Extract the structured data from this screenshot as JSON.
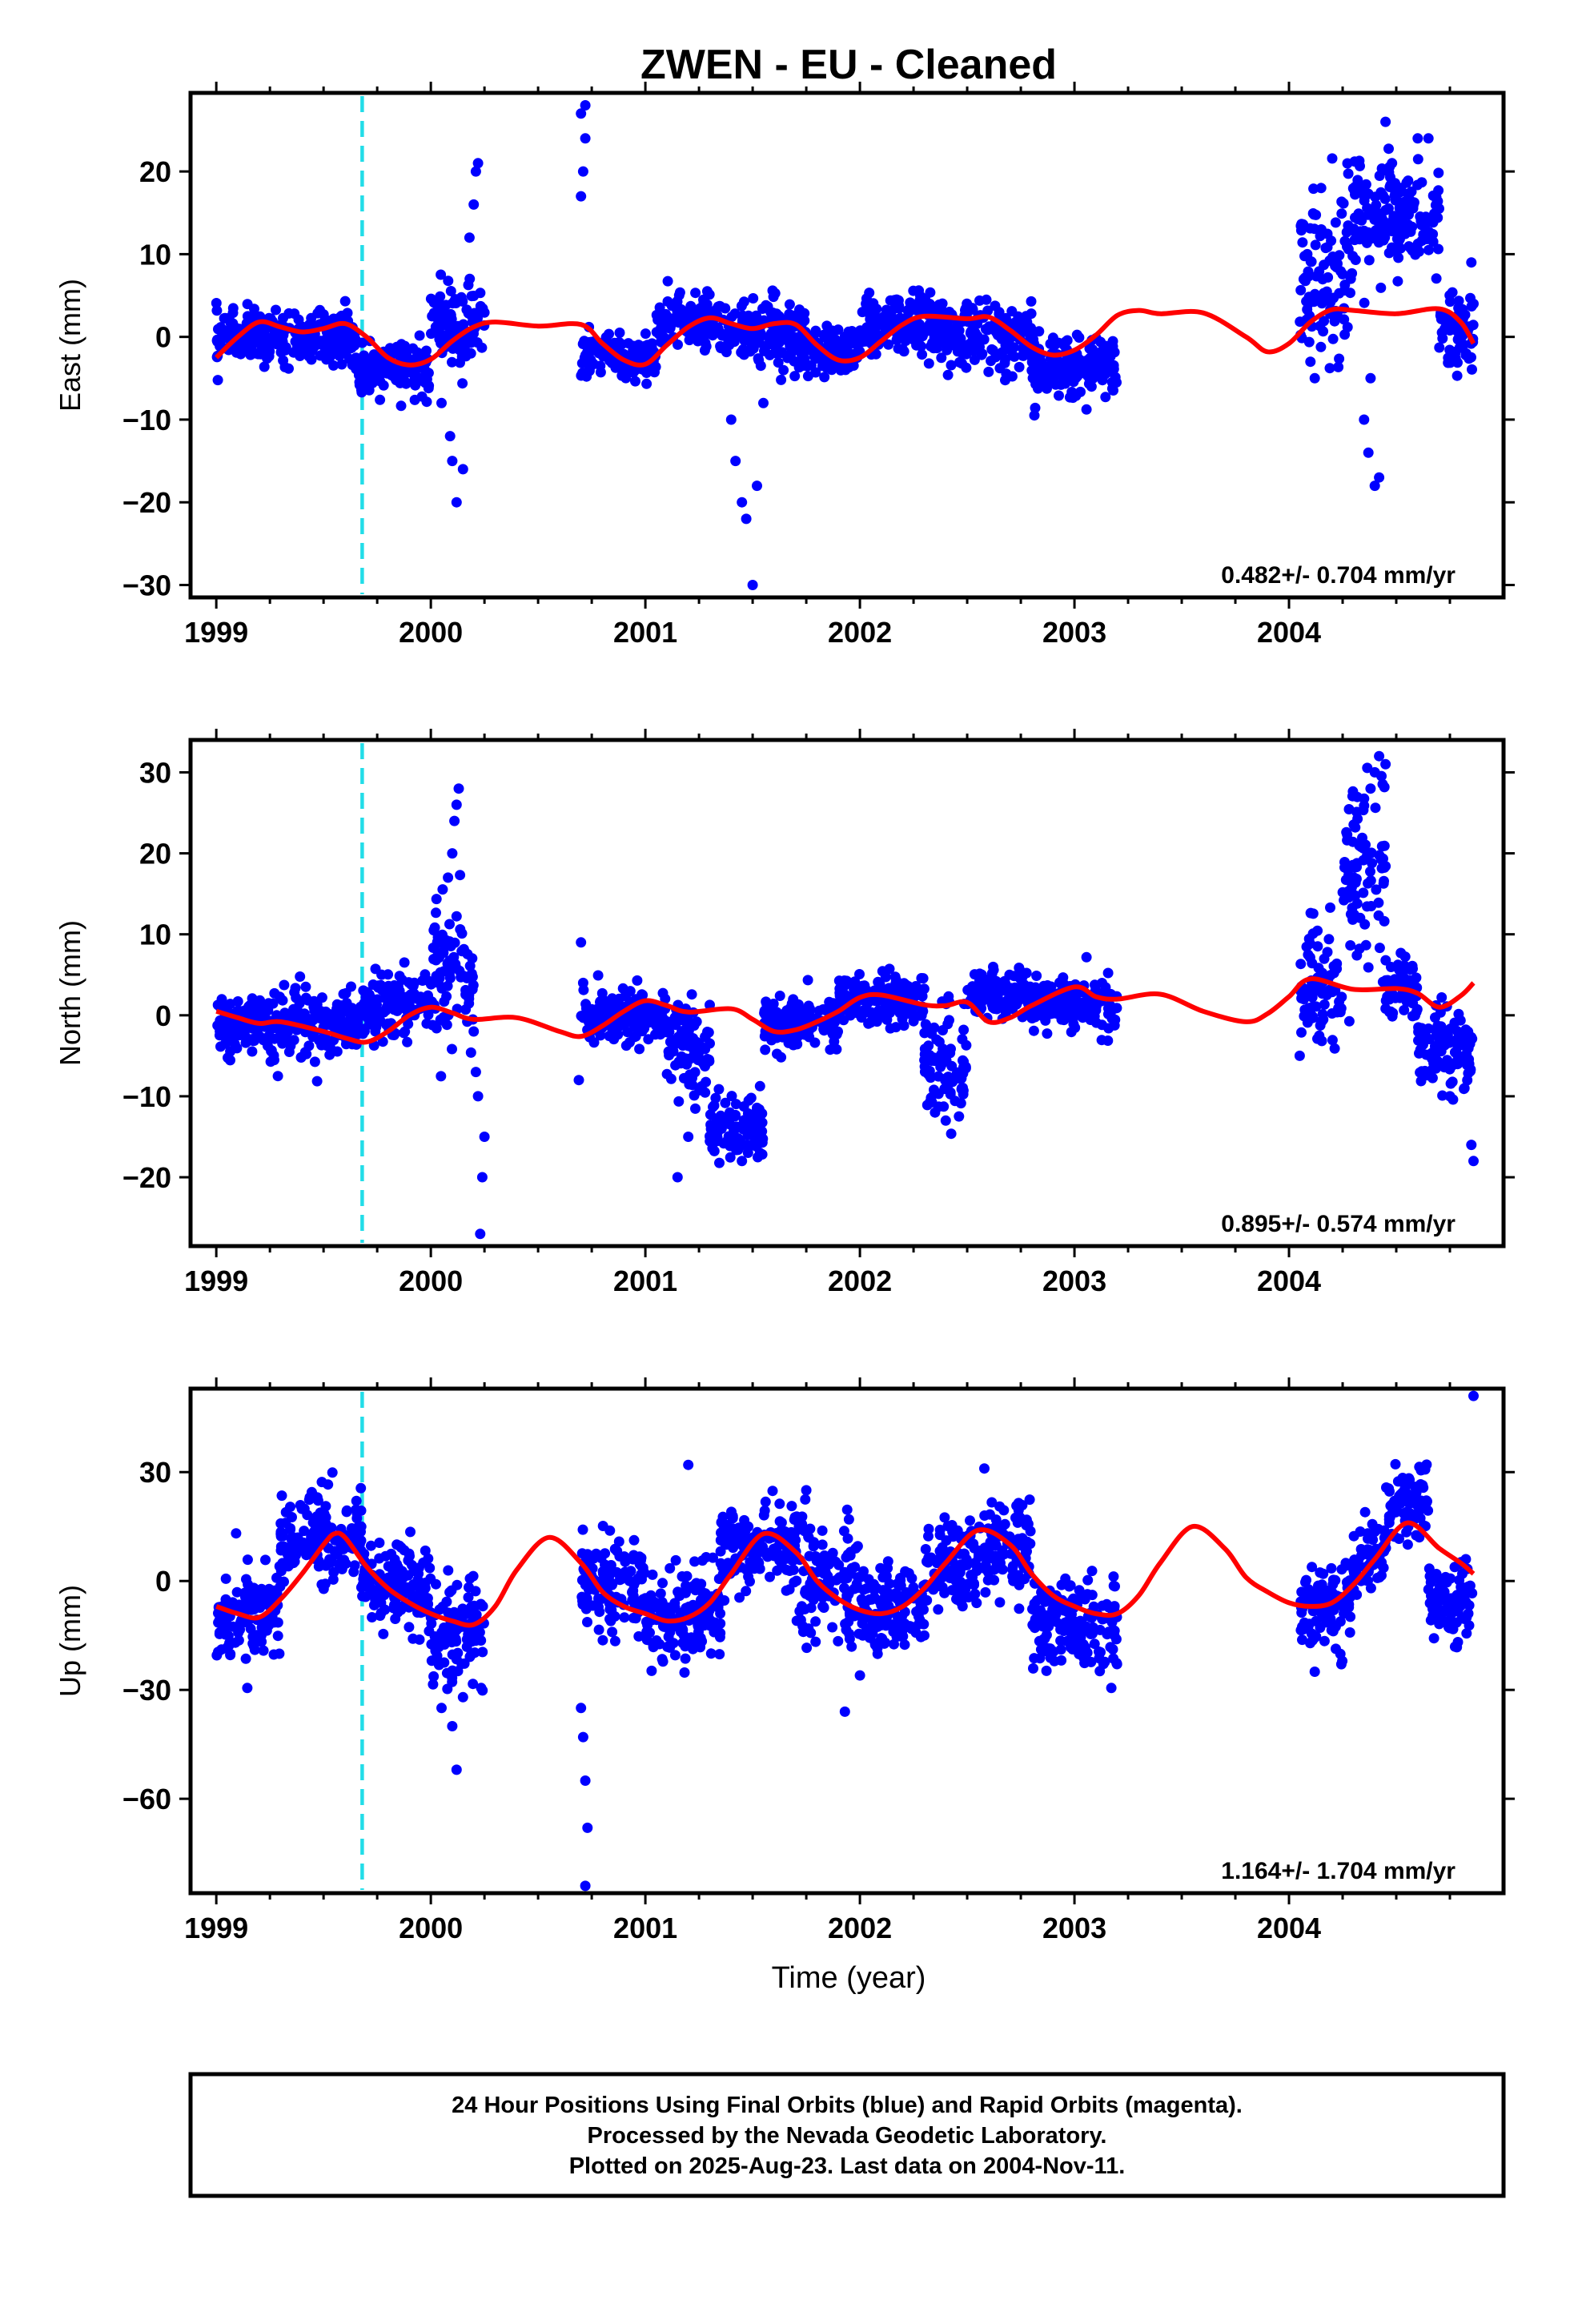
{
  "title": "ZWEN  - EU - Cleaned",
  "chart_data": [
    {
      "type": "scatter",
      "ylabel": "East (mm)",
      "xlabel": "",
      "xlim": [
        1998.88,
        2005.0
      ],
      "ylim": [
        -31.5,
        29.5
      ],
      "x_ticks": [
        1999,
        2000,
        2001,
        2002,
        2003,
        2004
      ],
      "y_ticks": [
        -30,
        -20,
        -10,
        0,
        10,
        20
      ],
      "rate_label": "0.482+/- 0.704 mm/yr",
      "antenna_change_x": 1999.68,
      "points_color": "#0000ff",
      "model_color": "#ff0000",
      "model": {
        "x": [
          1999.0,
          1999.1,
          1999.2,
          1999.3,
          1999.4,
          1999.5,
          1999.6,
          1999.7,
          1999.8,
          1999.9,
          2000.0,
          2000.1,
          2000.2,
          2000.3,
          2000.5,
          2000.7,
          2000.8,
          2000.9,
          2001.0,
          2001.1,
          2001.2,
          2001.3,
          2001.4,
          2001.5,
          2001.6,
          2001.7,
          2001.8,
          2001.9,
          2002.0,
          2002.1,
          2002.2,
          2002.3,
          2002.5,
          2002.6,
          2002.7,
          2002.8,
          2002.9,
          2003.0,
          2003.1,
          2003.2,
          2003.3,
          2003.4,
          2003.6,
          2003.8,
          2003.9,
          2004.0,
          2004.1,
          2004.2,
          2004.3,
          2004.5,
          2004.7,
          2004.8,
          2004.86
        ],
        "y": [
          -2.5,
          0.0,
          1.8,
          1.2,
          0.6,
          1.0,
          1.6,
          0.0,
          -2.5,
          -3.4,
          -2.7,
          -0.5,
          1.2,
          1.8,
          1.3,
          1.5,
          -0.8,
          -2.8,
          -3.3,
          -1.0,
          1.2,
          2.3,
          1.6,
          1.0,
          1.6,
          1.5,
          -1.0,
          -2.8,
          -2.5,
          -0.5,
          1.5,
          2.5,
          2.2,
          2.4,
          0.8,
          -1.2,
          -2.2,
          -1.6,
          0.2,
          2.6,
          3.2,
          2.8,
          2.9,
          0.0,
          -1.8,
          -0.8,
          1.8,
          3.3,
          3.2,
          2.8,
          3.4,
          1.8,
          -0.8
        ]
      },
      "clusters": [
        [
          1999.0,
          1999.65,
          0.0,
          1.5
        ],
        [
          1999.65,
          2000.0,
          -4.0,
          1.5
        ],
        [
          2000.0,
          2000.25,
          1.5,
          2.5
        ],
        [
          2000.7,
          2001.05,
          -2.5,
          1.2
        ],
        [
          2001.05,
          2001.35,
          2.0,
          1.5
        ],
        [
          2001.35,
          2001.75,
          0.5,
          2.0
        ],
        [
          2001.75,
          2002.0,
          -2.0,
          1.5
        ],
        [
          2002.0,
          2002.4,
          1.5,
          1.8
        ],
        [
          2002.4,
          2002.8,
          0.0,
          2.0
        ],
        [
          2002.8,
          2003.2,
          -3.5,
          1.8
        ],
        [
          2004.05,
          2004.3,
          8.0,
          5.0
        ],
        [
          2004.3,
          2004.5,
          14.0,
          4.0
        ],
        [
          2004.5,
          2004.7,
          14.0,
          3.0
        ],
        [
          2004.7,
          2004.86,
          0.5,
          2.5
        ]
      ],
      "outliers": [
        [
          2000.1,
          -15
        ],
        [
          2000.12,
          -20
        ],
        [
          2000.09,
          -12
        ],
        [
          2000.05,
          -8
        ],
        [
          2000.15,
          -16
        ],
        [
          2000.18,
          12
        ],
        [
          2000.2,
          16
        ],
        [
          2000.21,
          20
        ],
        [
          2000.22,
          21
        ],
        [
          2000.7,
          17
        ],
        [
          2000.71,
          20
        ],
        [
          2000.72,
          24
        ],
        [
          2000.7,
          27
        ],
        [
          2000.72,
          28
        ],
        [
          2001.4,
          -10
        ],
        [
          2001.42,
          -15
        ],
        [
          2001.45,
          -20
        ],
        [
          2001.47,
          -22
        ],
        [
          2001.5,
          -30
        ],
        [
          2001.52,
          -18
        ],
        [
          2001.55,
          -8
        ],
        [
          2004.1,
          -3
        ],
        [
          2004.12,
          -5
        ],
        [
          2004.15,
          18
        ],
        [
          2004.35,
          -10
        ],
        [
          2004.37,
          -14
        ],
        [
          2004.4,
          -18
        ],
        [
          2004.42,
          -17
        ],
        [
          2004.38,
          -5
        ],
        [
          2004.45,
          26
        ],
        [
          2004.48,
          21
        ],
        [
          2004.6,
          24
        ],
        [
          2004.65,
          24
        ],
        [
          2004.85,
          9
        ],
        [
          2004.86,
          4
        ]
      ]
    },
    {
      "type": "scatter",
      "ylabel": "North (mm)",
      "xlabel": "",
      "xlim": [
        1998.88,
        2005.0
      ],
      "ylim": [
        -28.5,
        34.0
      ],
      "x_ticks": [
        1999,
        2000,
        2001,
        2002,
        2003,
        2004
      ],
      "y_ticks": [
        -20,
        -10,
        0,
        10,
        20,
        30
      ],
      "rate_label": "0.895+/- 0.574 mm/yr",
      "antenna_change_x": 1999.68,
      "points_color": "#0000ff",
      "model_color": "#ff0000",
      "model": {
        "x": [
          1999.0,
          1999.1,
          1999.2,
          1999.3,
          1999.5,
          1999.6,
          1999.7,
          1999.8,
          1999.9,
          2000.0,
          2000.1,
          2000.2,
          2000.4,
          2000.6,
          2000.7,
          2000.8,
          2000.9,
          2001.0,
          2001.1,
          2001.2,
          2001.4,
          2001.5,
          2001.6,
          2001.7,
          2001.8,
          2001.9,
          2002.0,
          2002.1,
          2002.3,
          2002.4,
          2002.5,
          2002.6,
          2002.7,
          2002.8,
          2003.0,
          2003.1,
          2003.2,
          2003.4,
          2003.6,
          2003.8,
          2003.9,
          2004.0,
          2004.1,
          2004.3,
          2004.5,
          2004.6,
          2004.7,
          2004.8,
          2004.86
        ],
        "y": [
          0.5,
          -0.3,
          -1.0,
          -0.8,
          -2.0,
          -2.8,
          -3.3,
          -2.0,
          0.0,
          1.0,
          0.3,
          -0.5,
          -0.3,
          -2.0,
          -2.6,
          -1.3,
          0.5,
          1.8,
          1.2,
          0.4,
          0.8,
          -0.5,
          -2.0,
          -1.8,
          -0.8,
          0.5,
          2.2,
          2.5,
          1.3,
          1.2,
          1.6,
          -0.8,
          -0.3,
          1.2,
          3.5,
          2.3,
          2.0,
          2.6,
          0.5,
          -0.8,
          0.2,
          2.3,
          4.5,
          3.2,
          3.3,
          2.7,
          1.0,
          2.4,
          4.0
        ]
      },
      "clusters": [
        [
          1999.0,
          1999.68,
          -1.5,
          2.0
        ],
        [
          1999.68,
          2000.0,
          1.5,
          2.0
        ],
        [
          2000.0,
          2000.2,
          6.0,
          4.0
        ],
        [
          2000.7,
          2001.1,
          0.0,
          1.8
        ],
        [
          2001.1,
          2001.3,
          -4.0,
          2.5
        ],
        [
          2001.3,
          2001.55,
          -14.0,
          2.0
        ],
        [
          2001.55,
          2001.9,
          -1.0,
          1.5
        ],
        [
          2001.9,
          2002.3,
          2.0,
          1.5
        ],
        [
          2002.3,
          2002.5,
          -6.0,
          3.5
        ],
        [
          2002.5,
          2002.8,
          2.5,
          1.5
        ],
        [
          2002.8,
          2003.2,
          1.5,
          1.5
        ],
        [
          2004.05,
          2004.25,
          3.0,
          4.0
        ],
        [
          2004.25,
          2004.45,
          18.0,
          6.0
        ],
        [
          2004.45,
          2004.6,
          3.5,
          2.0
        ],
        [
          2004.6,
          2004.86,
          -4.0,
          2.5
        ]
      ],
      "outliers": [
        [
          2000.1,
          20
        ],
        [
          2000.11,
          24
        ],
        [
          2000.12,
          26
        ],
        [
          2000.13,
          28
        ],
        [
          2000.08,
          17
        ],
        [
          2000.2,
          -2
        ],
        [
          2000.21,
          -7
        ],
        [
          2000.22,
          -10
        ],
        [
          2000.25,
          -15
        ],
        [
          2000.24,
          -20
        ],
        [
          2000.23,
          -27
        ],
        [
          2000.7,
          9
        ],
        [
          2000.71,
          4
        ],
        [
          2000.69,
          -8
        ],
        [
          2001.2,
          -15
        ],
        [
          2001.15,
          -20
        ],
        [
          2001.45,
          -18
        ],
        [
          2002.35,
          -12
        ],
        [
          2002.4,
          -13
        ],
        [
          2004.4,
          30
        ],
        [
          2004.42,
          32
        ],
        [
          2004.45,
          31
        ],
        [
          2004.38,
          28
        ],
        [
          2004.75,
          -10
        ],
        [
          2004.85,
          -16
        ],
        [
          2004.86,
          -18
        ],
        [
          2004.84,
          -6
        ],
        [
          2004.05,
          -5
        ]
      ]
    },
    {
      "type": "scatter",
      "ylabel": "Up (mm)",
      "xlabel": "Time (year)",
      "xlim": [
        1998.88,
        2005.0
      ],
      "ylim": [
        -86,
        53
      ],
      "x_ticks": [
        1999,
        2000,
        2001,
        2002,
        2003,
        2004
      ],
      "y_ticks": [
        -60,
        -30,
        0,
        30
      ],
      "rate_label": "1.164+/- 1.704 mm/yr",
      "antenna_change_x": 1999.68,
      "points_color": "#0000ff",
      "model_color": "#ff0000",
      "model": {
        "x": [
          1999.0,
          1999.1,
          1999.2,
          1999.3,
          1999.4,
          1999.5,
          1999.55,
          1999.6,
          1999.7,
          1999.8,
          1999.9,
          2000.0,
          2000.1,
          2000.2,
          2000.3,
          2000.4,
          2000.55,
          2000.7,
          2000.8,
          2000.9,
          2001.0,
          2001.1,
          2001.2,
          2001.3,
          2001.4,
          2001.55,
          2001.7,
          2001.8,
          2001.9,
          2002.0,
          2002.1,
          2002.2,
          2002.3,
          2002.4,
          2002.55,
          2002.7,
          2002.8,
          2002.9,
          2003.0,
          2003.1,
          2003.2,
          2003.3,
          2003.4,
          2003.55,
          2003.7,
          2003.8,
          2003.9,
          2004.0,
          2004.1,
          2004.2,
          2004.3,
          2004.4,
          2004.55,
          2004.7,
          2004.8,
          2004.86
        ],
        "y": [
          -7,
          -9,
          -10,
          -5,
          2,
          10,
          13,
          12,
          4,
          -2,
          -6,
          -9,
          -11,
          -12,
          -7,
          3,
          12,
          5,
          -3,
          -7,
          -9,
          -11,
          -10,
          -6,
          2,
          13,
          8,
          0,
          -5,
          -8,
          -9,
          -7,
          -2,
          5,
          14,
          10,
          2,
          -4,
          -7,
          -9,
          -9,
          -4,
          5,
          15,
          9,
          1,
          -3,
          -6,
          -7,
          -6,
          -1,
          6,
          16,
          9,
          5,
          2
        ]
      },
      "clusters": [
        [
          1999.0,
          1999.3,
          -10.0,
          7.0
        ],
        [
          1999.3,
          1999.68,
          12.0,
          6.0
        ],
        [
          1999.68,
          2000.0,
          -2.0,
          6.0
        ],
        [
          2000.0,
          2000.25,
          -15.0,
          7.0
        ],
        [
          2000.7,
          2001.0,
          0.0,
          6.0
        ],
        [
          2001.0,
          2001.35,
          -10.0,
          6.0
        ],
        [
          2001.35,
          2001.7,
          10.0,
          6.0
        ],
        [
          2001.7,
          2002.0,
          0.0,
          8.0
        ],
        [
          2002.0,
          2002.3,
          -8.0,
          6.0
        ],
        [
          2002.3,
          2002.55,
          4.0,
          6.0
        ],
        [
          2002.55,
          2002.8,
          10.0,
          6.0
        ],
        [
          2002.8,
          2003.2,
          -12.0,
          6.0
        ],
        [
          2004.05,
          2004.3,
          -8.0,
          6.0
        ],
        [
          2004.3,
          2004.45,
          5.0,
          5.0
        ],
        [
          2004.45,
          2004.65,
          22.0,
          5.0
        ],
        [
          2004.65,
          2004.86,
          -6.0,
          5.0
        ]
      ],
      "outliers": [
        [
          2000.1,
          -40
        ],
        [
          2000.12,
          -52
        ],
        [
          2000.05,
          -35
        ],
        [
          2000.15,
          -32
        ],
        [
          2000.7,
          -35
        ],
        [
          2000.71,
          -43
        ],
        [
          2000.72,
          -55
        ],
        [
          2000.73,
          -68
        ],
        [
          2000.72,
          -84
        ],
        [
          2001.2,
          32
        ],
        [
          2001.93,
          -36
        ],
        [
          2002.0,
          -26
        ],
        [
          2002.58,
          31
        ],
        [
          2001.75,
          25
        ],
        [
          2004.86,
          51
        ],
        [
          2004.12,
          -25
        ]
      ]
    }
  ],
  "footer": {
    "line1": "24 Hour Positions Using Final Orbits (blue) and Rapid Orbits (magenta).",
    "line2": "Processed by the Nevada Geodetic Laboratory.",
    "line3": "Plotted on 2025-Aug-23. Last data on 2004-Nov-11."
  }
}
